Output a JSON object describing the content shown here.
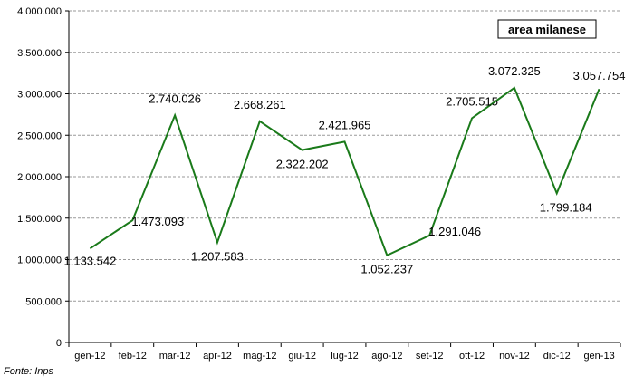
{
  "chart_data": {
    "type": "line",
    "categories": [
      "gen-12",
      "feb-12",
      "mar-12",
      "apr-12",
      "mag-12",
      "giu-12",
      "lug-12",
      "ago-12",
      "set-12",
      "ott-12",
      "nov-12",
      "dic-12",
      "gen-13"
    ],
    "series": [
      {
        "name": "area milanese",
        "values": [
          1133542,
          1473093,
          2740026,
          1207583,
          2668261,
          2322202,
          2421965,
          1052237,
          1291046,
          2705515,
          3072325,
          1799184,
          3057754
        ],
        "labels": [
          "1.133.542",
          "1.473.093",
          "2.740.026",
          "1.207.583",
          "2.668.261",
          "2.322.202",
          "2.421.965",
          "1.052.237",
          "1.291.046",
          "2.705.515",
          "3.072.325",
          "1.799.184",
          "3.057.754"
        ],
        "color": "#1a7a1a"
      }
    ],
    "ylim": [
      0,
      4000000
    ],
    "yticks": [
      0,
      500000,
      1000000,
      1500000,
      2000000,
      2500000,
      3000000,
      3500000,
      4000000
    ],
    "ytick_labels": [
      "0",
      "500.000",
      "1.000.000",
      "1.500.000",
      "2.000.000",
      "2.500.000",
      "3.000.000",
      "3.500.000",
      "4.000.000"
    ],
    "grid": true,
    "legend": "top-right",
    "xlabel": "",
    "ylabel": ""
  },
  "source_note": "Fonte: Inps"
}
